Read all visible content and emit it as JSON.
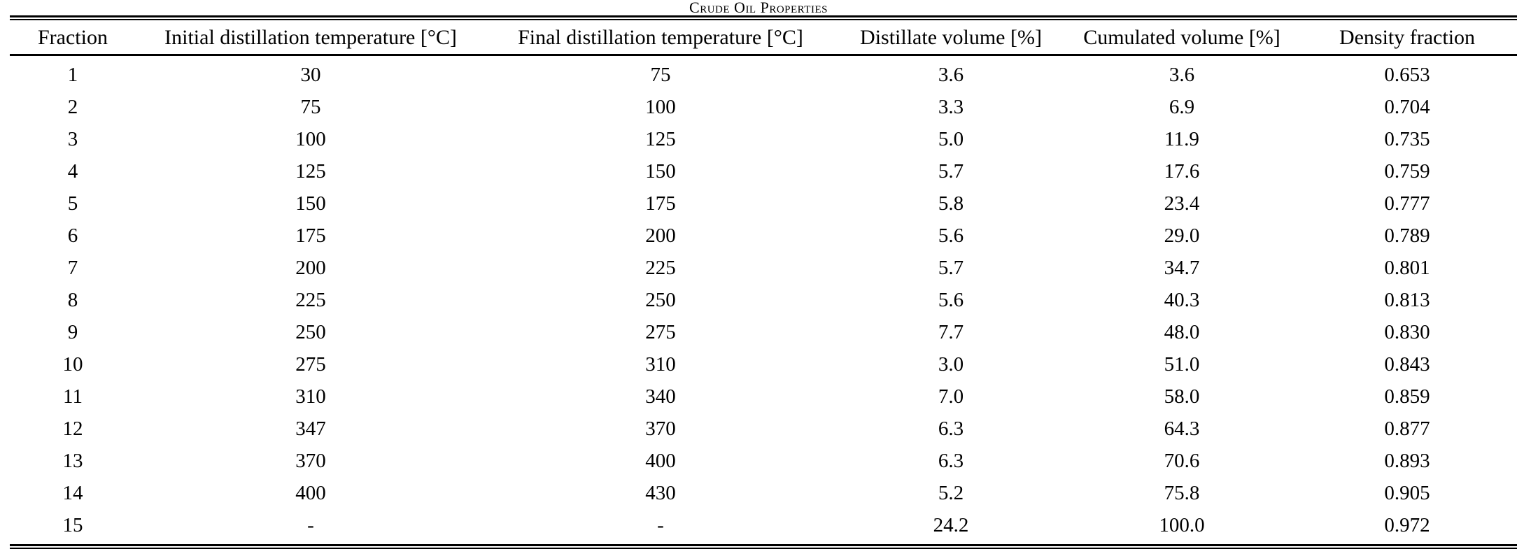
{
  "caption": "Crude Oil Properties",
  "table": {
    "columns": [
      "Fraction",
      "Initial distillation temperature [°C]",
      "Final distillation temperature [°C]",
      "Distillate volume [%]",
      "Cumulated volume [%]",
      "Density fraction"
    ],
    "rows": [
      [
        "1",
        "30",
        "75",
        "3.6",
        "3.6",
        "0.653"
      ],
      [
        "2",
        "75",
        "100",
        "3.3",
        "6.9",
        "0.704"
      ],
      [
        "3",
        "100",
        "125",
        "5.0",
        "11.9",
        "0.735"
      ],
      [
        "4",
        "125",
        "150",
        "5.7",
        "17.6",
        "0.759"
      ],
      [
        "5",
        "150",
        "175",
        "5.8",
        "23.4",
        "0.777"
      ],
      [
        "6",
        "175",
        "200",
        "5.6",
        "29.0",
        "0.789"
      ],
      [
        "7",
        "200",
        "225",
        "5.7",
        "34.7",
        "0.801"
      ],
      [
        "8",
        "225",
        "250",
        "5.6",
        "40.3",
        "0.813"
      ],
      [
        "9",
        "250",
        "275",
        "7.7",
        "48.0",
        "0.830"
      ],
      [
        "10",
        "275",
        "310",
        "3.0",
        "51.0",
        "0.843"
      ],
      [
        "11",
        "310",
        "340",
        "7.0",
        "58.0",
        "0.859"
      ],
      [
        "12",
        "347",
        "370",
        "6.3",
        "64.3",
        "0.877"
      ],
      [
        "13",
        "370",
        "400",
        "6.3",
        "70.6",
        "0.893"
      ],
      [
        "14",
        "400",
        "430",
        "5.2",
        "75.8",
        "0.905"
      ],
      [
        "15",
        "-",
        "-",
        "24.2",
        "100.0",
        "0.972"
      ]
    ]
  }
}
